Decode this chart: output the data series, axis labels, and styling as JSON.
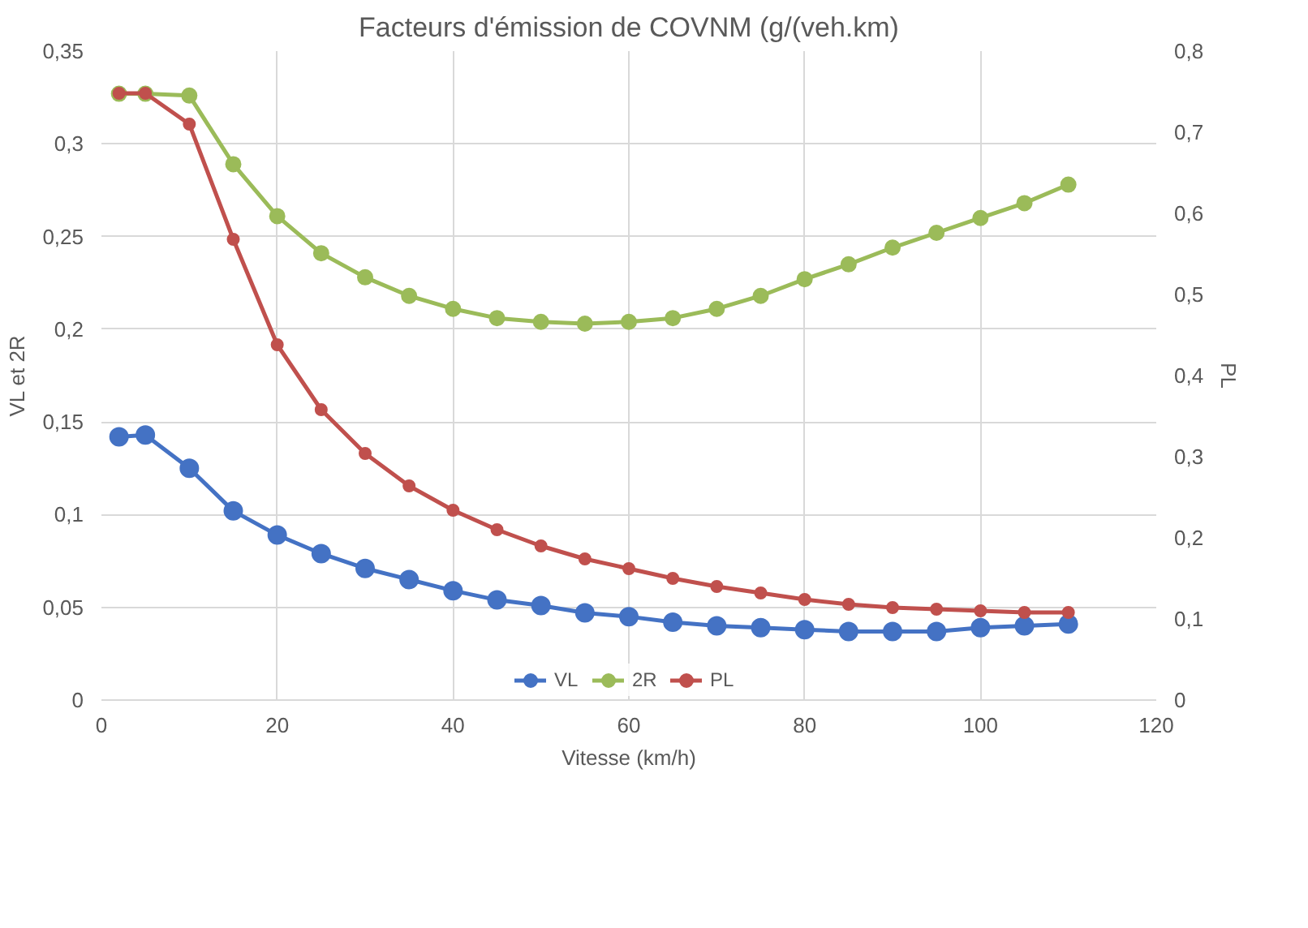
{
  "chart_data": {
    "type": "line",
    "title": "Facteurs d'émission de COVNM (g/(veh.km)",
    "xlabel": "Vitesse (km/h)",
    "ylabel": "VL et 2R",
    "y2label": "PL",
    "x": [
      2,
      5,
      10,
      15,
      20,
      25,
      30,
      35,
      40,
      45,
      50,
      55,
      60,
      65,
      70,
      75,
      80,
      85,
      90,
      95,
      100,
      105,
      110
    ],
    "series": [
      {
        "name": "VL",
        "color": "#4472c4",
        "values": [
          0.142,
          0.143,
          0.125,
          0.102,
          0.089,
          0.079,
          0.071,
          0.065,
          0.059,
          0.054,
          0.051,
          0.047,
          0.045,
          0.042,
          0.04,
          0.039,
          0.038,
          0.037,
          0.037,
          0.037,
          0.039,
          0.04,
          0.041
        ]
      },
      {
        "name": "2R",
        "color": "#9bbb59",
        "values": [
          0.327,
          0.327,
          0.326,
          0.289,
          0.261,
          0.241,
          0.228,
          0.218,
          0.211,
          0.206,
          0.204,
          0.203,
          0.204,
          0.206,
          0.211,
          0.218,
          0.227,
          0.235,
          0.244,
          0.252,
          0.26,
          0.268,
          0.278
        ]
      },
      {
        "name": "PL",
        "color": "#c0504d",
        "axis": "y2",
        "values": [
          0.748,
          0.748,
          0.71,
          0.568,
          0.438,
          0.358,
          0.304,
          0.264,
          0.234,
          0.21,
          0.19,
          0.174,
          0.162,
          0.15,
          0.14,
          0.132,
          0.124,
          0.118,
          0.114,
          0.112,
          0.11,
          0.108,
          0.108
        ]
      }
    ],
    "xlim": [
      0,
      120
    ],
    "xticks": [
      0,
      20,
      40,
      60,
      80,
      100,
      120
    ],
    "ylim": [
      0,
      0.35
    ],
    "yticks": [
      0,
      {
        "value": 0.05,
        "label": "0,05"
      },
      {
        "value": 0.1,
        "label": "0,1"
      },
      {
        "value": 0.15,
        "label": "0,15"
      },
      {
        "value": 0.2,
        "label": "0,2"
      },
      {
        "value": 0.25,
        "label": "0,25"
      },
      {
        "value": 0.3,
        "label": "0,3"
      },
      {
        "value": 0.35,
        "label": "0,35"
      }
    ],
    "y2lim": [
      0,
      0.8
    ],
    "y2ticks": [
      0,
      {
        "value": 0.1,
        "label": "0,1"
      },
      {
        "value": 0.2,
        "label": "0,2"
      },
      {
        "value": 0.3,
        "label": "0,3"
      },
      {
        "value": 0.4,
        "label": "0,4"
      },
      {
        "value": 0.5,
        "label": "0,5"
      },
      {
        "value": 0.6,
        "label": "0,6"
      },
      {
        "value": 0.7,
        "label": "0,7"
      },
      {
        "value": 0.8,
        "label": "0,8"
      }
    ],
    "grid": true,
    "legend": "bottom",
    "marker": "circle",
    "line_style": "solid"
  }
}
